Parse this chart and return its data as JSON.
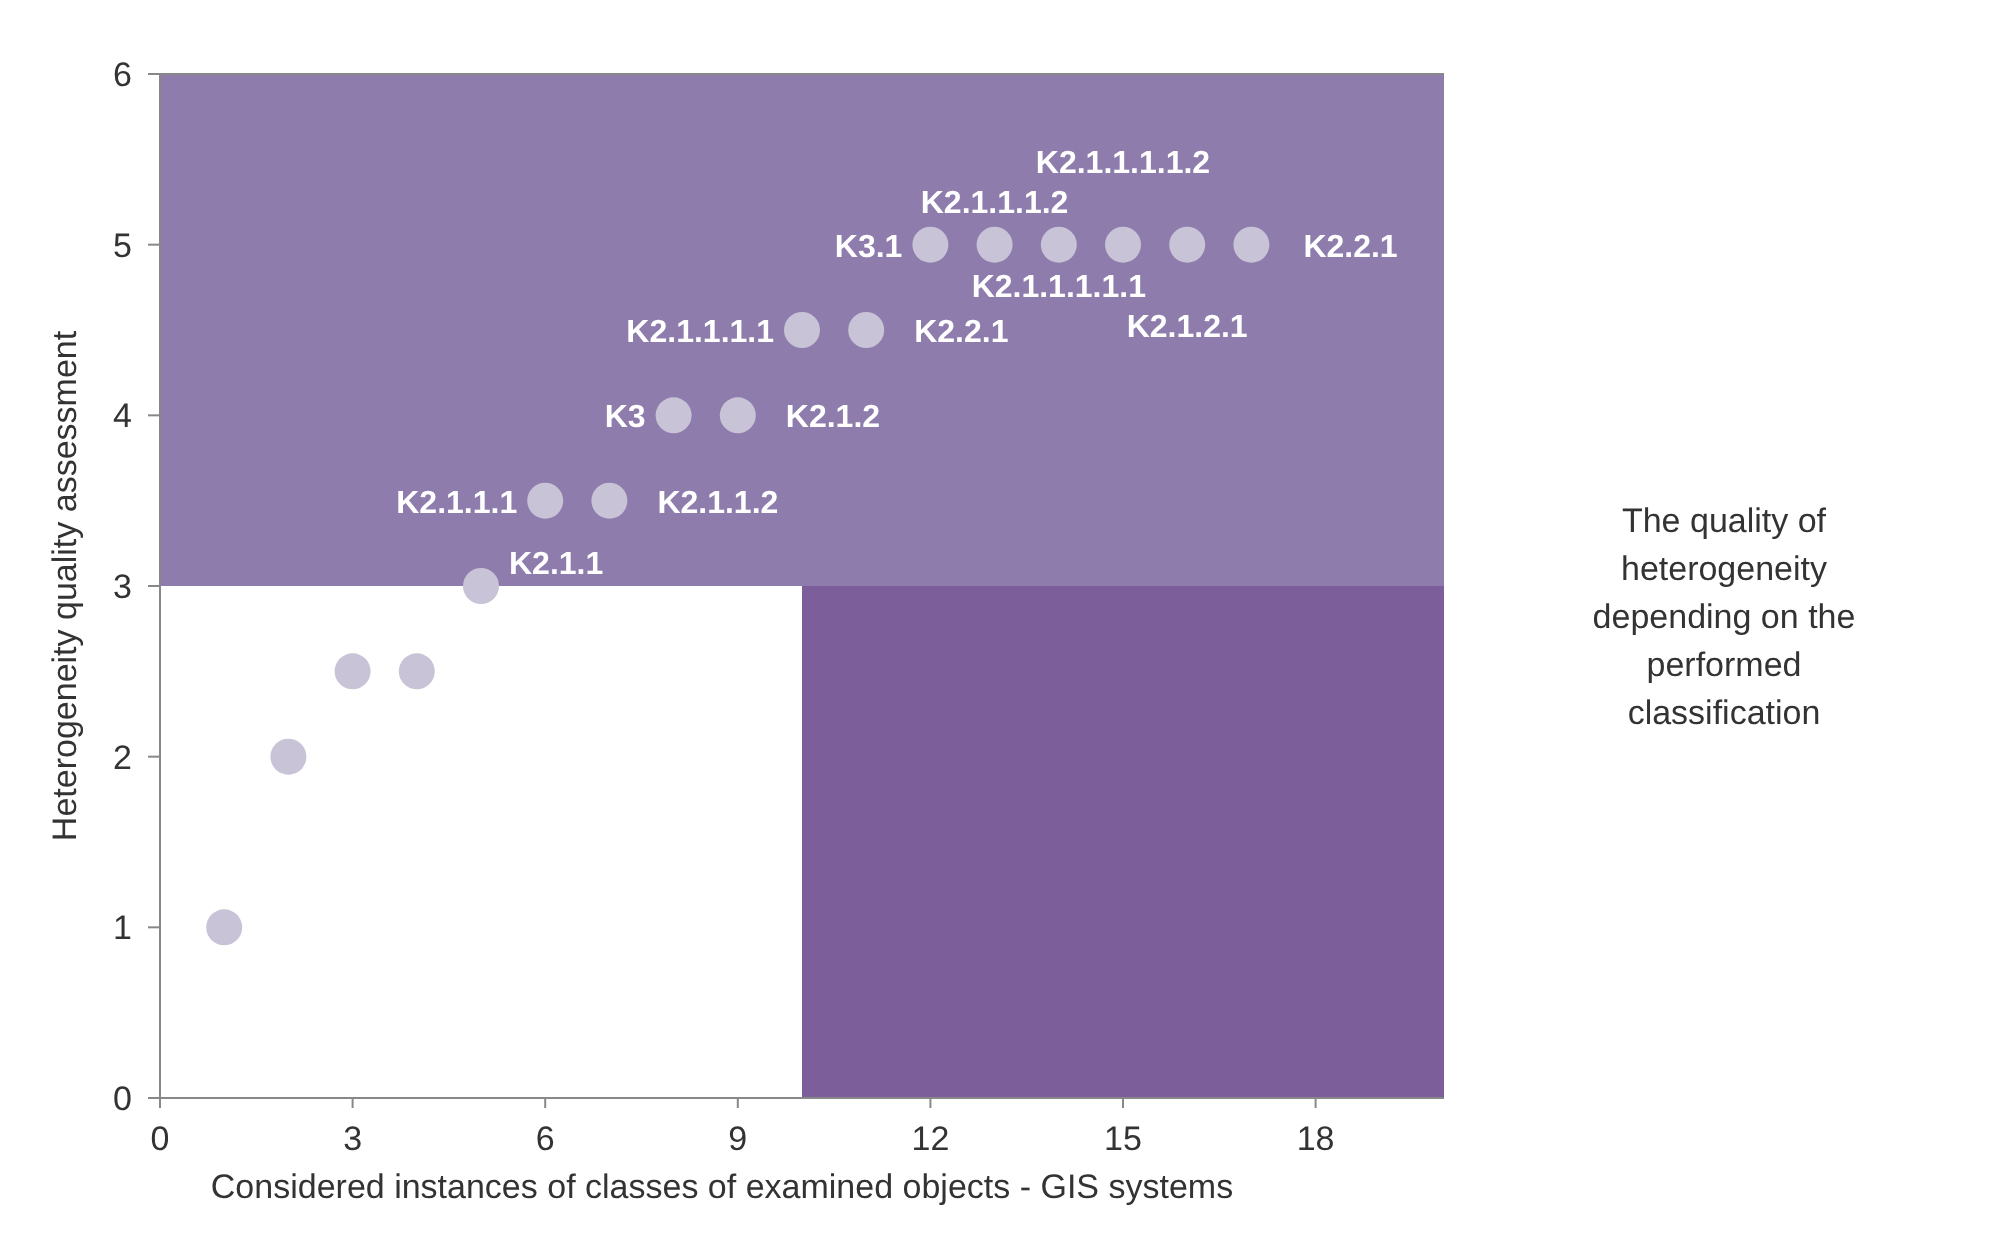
{
  "chart_data": {
    "type": "scatter",
    "xlabel": "Considered instances of classes of examined objects - GIS systems",
    "ylabel": "Heterogeneity quality assessment",
    "x": [
      1,
      2,
      3,
      4,
      5,
      6,
      7,
      8,
      9,
      10,
      11,
      12,
      13,
      14,
      15,
      16,
      17
    ],
    "values": [
      1,
      2,
      2.5,
      2.5,
      3,
      3.5,
      3.5,
      4,
      4,
      4.5,
      4.5,
      5,
      5,
      5,
      5,
      5,
      5
    ],
    "value_labels": [
      null,
      null,
      null,
      null,
      "K2.1.1",
      "K2.1.1.1",
      "K2.1.1.2",
      "K3",
      "K2.1.2",
      "K2.1.1.1.1",
      "K2.2.1",
      "K3.1",
      "K2.1.1.1.2",
      "K2.1.1.1.1.1",
      "K2.1.1.1.1.2",
      "K2.1.2.1",
      "K2.2.1"
    ],
    "color": "#c8c3d6",
    "marker": "circle",
    "xlim": [
      0,
      20
    ],
    "xticks": [
      0,
      3,
      6,
      9,
      12,
      15,
      18
    ],
    "ylim": [
      0,
      6
    ],
    "yticks": [
      0,
      1,
      2,
      3,
      4,
      5,
      6
    ],
    "grid": false,
    "legend": false,
    "bands": [
      {
        "axis": "x",
        "from": 10,
        "to": 20,
        "color": "#7b5e9a"
      },
      {
        "axis": "y",
        "from": 3,
        "to": 6,
        "color": "#8e7cad"
      }
    ],
    "annotations": [
      "The quality of heterogeneity depending on the performed classification"
    ]
  }
}
